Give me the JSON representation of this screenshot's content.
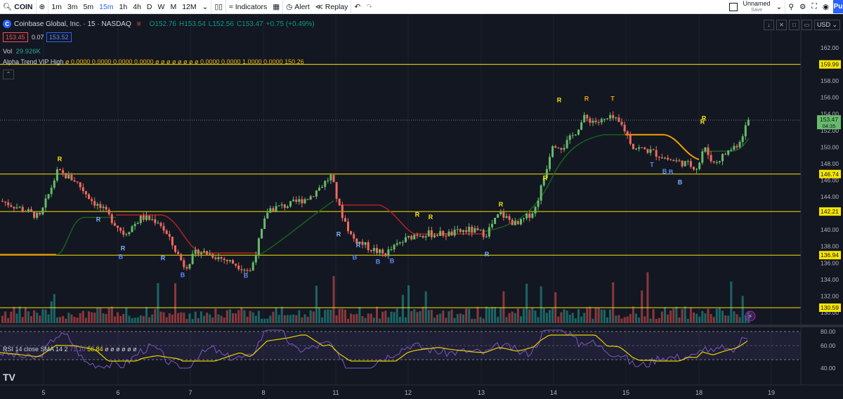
{
  "toolbar": {
    "symbol": "COIN",
    "timeframes": [
      "1m",
      "3m",
      "5m",
      "15m",
      "1h",
      "4h",
      "D",
      "W",
      "M",
      "12M"
    ],
    "active_timeframe": "15m",
    "indicators_label": "Indicators",
    "alert_label": "Alert",
    "replay_label": "Replay",
    "layout_name": "Unnamed",
    "layout_status": "Save",
    "publish_label": "Pu"
  },
  "legend": {
    "title": "Coinbase Global, Inc. · 15 · NASDAQ",
    "open": "O152.76",
    "high": "H153.54",
    "low": "L152.56",
    "close": "C153.47",
    "change": "+0.75 (+0.49%)",
    "bid": "153.45",
    "spread": "0.07",
    "ask": "153.52",
    "logo_letter": "C"
  },
  "volume": {
    "label": "Vol",
    "value": "29.926K"
  },
  "indicator": {
    "name": "Alpha Trend VIP High",
    "values": "ø 0.0000 0.0000 0.0000 0.0000 ø ø ø ø ø ø ø ø 0.0000 0.0000 1.0000 0.0000 150.26"
  },
  "rsi": {
    "label": "RSI 14 close SMA 14 2",
    "v1": "71.10",
    "v2": "56.84",
    "rest": "ø ø ø ø ø ø"
  },
  "currency": "USD",
  "price_axis": {
    "ticks": [
      "162.00",
      "160.00",
      "158.00",
      "156.00",
      "154.00",
      "152.00",
      "150.00",
      "148.00",
      "146.00",
      "144.00",
      "142.00",
      "140.00",
      "138.00",
      "136.00",
      "134.00",
      "132.00",
      "130.00"
    ],
    "current_price": "153.47",
    "countdown": "04:35",
    "levels": [
      "159.99",
      "146.74",
      "142.21",
      "136.94",
      "130.59"
    ]
  },
  "rsi_axis": {
    "ticks": [
      "80.00",
      "60.00",
      "40.00"
    ]
  },
  "time_axis": {
    "labels": [
      "5",
      "6",
      "7",
      "8",
      "11",
      "12",
      "13",
      "14",
      "15",
      "18",
      "19"
    ]
  },
  "signals": {
    "labels": [
      "R",
      "R",
      "R",
      "B",
      "R",
      "B",
      "B",
      "R",
      "R",
      "B",
      "B",
      "B",
      "R",
      "R",
      "R",
      "R",
      "R",
      "R",
      "R",
      "T",
      "T",
      "B",
      "B",
      "B",
      "R",
      "R"
    ]
  },
  "colors": {
    "up": "#26a69a",
    "down": "#ef5350",
    "level": "#f7e600",
    "trend_up": "#1b5e20",
    "trend_down": "#b22222",
    "candle_up": "#66bb6a",
    "candle_down": "#ef6b5b"
  },
  "logo": "TV"
}
